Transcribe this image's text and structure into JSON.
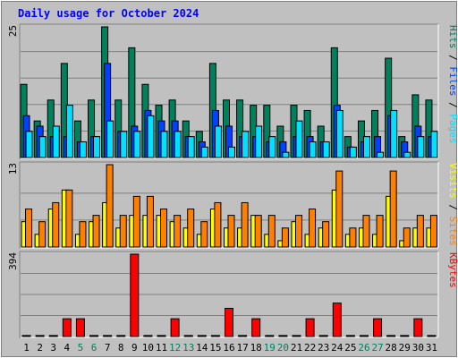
{
  "title": "Daily usage for October 2024",
  "colors": {
    "hits": "#00805c",
    "files": "#0040ff",
    "pages": "#00e0ff",
    "visits": "#ffff00",
    "sites": "#ff8000",
    "kbytes": "#ff0000",
    "title": "#0000ff",
    "weekend": "#00805c"
  },
  "chart_data": [
    {
      "type": "bar",
      "name": "hits-files-pages",
      "y_label_max": "25",
      "ylim": [
        0,
        25
      ],
      "legend": [
        "Pages",
        "Files",
        "Hits"
      ],
      "categories": [
        "1",
        "2",
        "3",
        "4",
        "5",
        "6",
        "7",
        "8",
        "9",
        "10",
        "11",
        "12",
        "13",
        "14",
        "15",
        "16",
        "17",
        "18",
        "19",
        "20",
        "21",
        "22",
        "23",
        "24",
        "25",
        "26",
        "27",
        "28",
        "29",
        "30",
        "31"
      ],
      "series": [
        {
          "name": "Hits",
          "values": [
            14,
            7,
            11,
            18,
            7,
            11,
            25,
            11,
            21,
            14,
            10,
            11,
            7,
            5,
            18,
            11,
            11,
            10,
            10,
            6,
            10,
            9,
            6,
            21,
            4,
            7,
            9,
            19,
            4,
            12,
            11
          ]
        },
        {
          "name": "Files",
          "values": [
            8,
            6,
            4,
            4,
            3,
            4,
            18,
            5,
            6,
            9,
            7,
            7,
            4,
            3,
            9,
            6,
            4,
            4,
            3,
            3,
            4,
            4,
            3,
            10,
            2,
            3,
            4,
            8,
            3,
            6,
            4
          ]
        },
        {
          "name": "Pages",
          "values": [
            5,
            4,
            6,
            10,
            3,
            4,
            7,
            5,
            5,
            8,
            5,
            5,
            4,
            2,
            6,
            2,
            5,
            6,
            4,
            1,
            7,
            3,
            3,
            9,
            2,
            4,
            1,
            9,
            1,
            4,
            5
          ]
        }
      ]
    },
    {
      "type": "bar",
      "name": "visits-sites",
      "y_label_max": "13",
      "ylim": [
        0,
        13
      ],
      "legend": [
        "Sites",
        "Visits"
      ],
      "categories": [
        "1",
        "2",
        "3",
        "4",
        "5",
        "6",
        "7",
        "8",
        "9",
        "10",
        "11",
        "12",
        "13",
        "14",
        "15",
        "16",
        "17",
        "18",
        "19",
        "20",
        "21",
        "22",
        "23",
        "24",
        "25",
        "26",
        "27",
        "28",
        "29",
        "30",
        "31"
      ],
      "series": [
        {
          "name": "Visits",
          "values": [
            4,
            2,
            6,
            9,
            2,
            4,
            7,
            3,
            5,
            5,
            5,
            4,
            3,
            2,
            6,
            3,
            3,
            5,
            2,
            1,
            4,
            2,
            3,
            9,
            2,
            3,
            2,
            8,
            1,
            3,
            3
          ]
        },
        {
          "name": "Sites",
          "values": [
            6,
            4,
            7,
            9,
            4,
            5,
            13,
            5,
            8,
            8,
            6,
            5,
            6,
            4,
            7,
            5,
            7,
            5,
            5,
            3,
            5,
            6,
            4,
            12,
            3,
            5,
            5,
            12,
            3,
            5,
            5
          ]
        }
      ]
    },
    {
      "type": "bar",
      "name": "kbytes",
      "y_label_max": "394",
      "ylim": [
        0,
        394
      ],
      "legend": [
        "KBytes"
      ],
      "categories": [
        "1",
        "2",
        "3",
        "4",
        "5",
        "6",
        "7",
        "8",
        "9",
        "10",
        "11",
        "12",
        "13",
        "14",
        "15",
        "16",
        "17",
        "18",
        "19",
        "20",
        "21",
        "22",
        "23",
        "24",
        "25",
        "26",
        "27",
        "28",
        "29",
        "30",
        "31"
      ],
      "series": [
        {
          "name": "KBytes",
          "values": [
            5,
            5,
            5,
            85,
            85,
            5,
            5,
            5,
            394,
            5,
            5,
            85,
            5,
            5,
            5,
            135,
            5,
            85,
            5,
            5,
            5,
            85,
            5,
            160,
            5,
            5,
            85,
            5,
            5,
            85,
            5
          ]
        }
      ]
    }
  ],
  "x_labels": [
    {
      "label": "1",
      "weekend": false
    },
    {
      "label": "2",
      "weekend": false
    },
    {
      "label": "3",
      "weekend": false
    },
    {
      "label": "4",
      "weekend": false
    },
    {
      "label": "5",
      "weekend": true
    },
    {
      "label": "6",
      "weekend": true
    },
    {
      "label": "7",
      "weekend": false
    },
    {
      "label": "8",
      "weekend": false
    },
    {
      "label": "9",
      "weekend": false
    },
    {
      "label": "10",
      "weekend": false
    },
    {
      "label": "11",
      "weekend": false
    },
    {
      "label": "12",
      "weekend": true
    },
    {
      "label": "13",
      "weekend": true
    },
    {
      "label": "14",
      "weekend": false
    },
    {
      "label": "15",
      "weekend": false
    },
    {
      "label": "16",
      "weekend": false
    },
    {
      "label": "17",
      "weekend": false
    },
    {
      "label": "18",
      "weekend": false
    },
    {
      "label": "19",
      "weekend": true
    },
    {
      "label": "20",
      "weekend": true
    },
    {
      "label": "21",
      "weekend": false
    },
    {
      "label": "22",
      "weekend": false
    },
    {
      "label": "23",
      "weekend": false
    },
    {
      "label": "24",
      "weekend": false
    },
    {
      "label": "25",
      "weekend": false
    },
    {
      "label": "26",
      "weekend": true
    },
    {
      "label": "27",
      "weekend": true
    },
    {
      "label": "28",
      "weekend": false
    },
    {
      "label": "29",
      "weekend": false
    },
    {
      "label": "30",
      "weekend": false
    },
    {
      "label": "31",
      "weekend": false
    }
  ]
}
